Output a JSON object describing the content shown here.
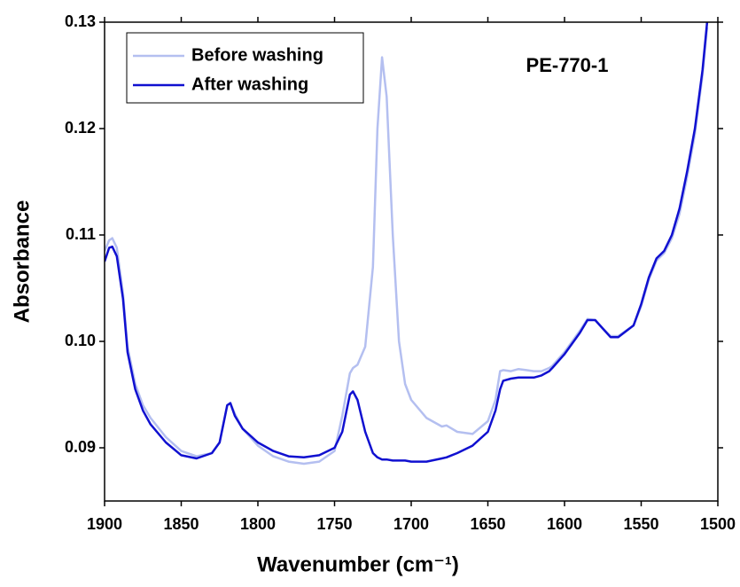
{
  "chart_data": {
    "type": "line",
    "x_label": "Wavenumber (cm⁻¹)",
    "y_label": "Absorbance",
    "annotation": "PE-770-1",
    "xlim": [
      1900,
      1500
    ],
    "ylim": [
      0.085,
      0.13
    ],
    "xticks": [
      1900,
      1850,
      1800,
      1750,
      1700,
      1650,
      1600,
      1550,
      1500
    ],
    "yticks": [
      0.09,
      {
        "value": 0.1,
        "label": "0.10"
      },
      0.11,
      0.12,
      0.13
    ],
    "legend": "upper left",
    "x": [
      1900,
      1897,
      1895,
      1892,
      1888,
      1885,
      1880,
      1875,
      1870,
      1860,
      1850,
      1840,
      1830,
      1825,
      1820,
      1818,
      1815,
      1810,
      1800,
      1790,
      1780,
      1770,
      1760,
      1750,
      1745,
      1740,
      1738,
      1735,
      1730,
      1725,
      1722,
      1719,
      1716,
      1712,
      1708,
      1704,
      1700,
      1690,
      1680,
      1677,
      1670,
      1660,
      1650,
      1645,
      1642,
      1640,
      1635,
      1630,
      1625,
      1620,
      1615,
      1610,
      1608,
      1600,
      1590,
      1585,
      1580,
      1575,
      1570,
      1565,
      1555,
      1550,
      1545,
      1540,
      1535,
      1530,
      1525,
      1520,
      1515,
      1510,
      1507
    ],
    "series": [
      {
        "name": "Before washing",
        "color": "#b4bff0",
        "values": [
          0.1085,
          0.1095,
          0.1097,
          0.1088,
          0.1045,
          0.0995,
          0.096,
          0.094,
          0.0928,
          0.091,
          0.0897,
          0.0892,
          0.0895,
          0.0905,
          0.094,
          0.0942,
          0.0932,
          0.0918,
          0.0902,
          0.0892,
          0.0887,
          0.0885,
          0.0887,
          0.0897,
          0.093,
          0.097,
          0.0975,
          0.0978,
          0.0995,
          0.107,
          0.12,
          0.1267,
          0.123,
          0.11,
          0.1,
          0.096,
          0.0945,
          0.0928,
          0.092,
          0.0921,
          0.0915,
          0.0913,
          0.0925,
          0.0945,
          0.0972,
          0.0973,
          0.0972,
          0.0974,
          0.0973,
          0.0972,
          0.0972,
          0.0975,
          0.0977,
          0.099,
          0.101,
          0.1021,
          0.102,
          0.1012,
          0.1005,
          0.1005,
          0.1015,
          0.1033,
          0.1058,
          0.1076,
          0.1083,
          0.1097,
          0.112,
          0.1155,
          0.1195,
          0.125,
          0.1295
        ]
      },
      {
        "name": "After washing",
        "color": "#1010d0",
        "values": [
          0.1075,
          0.1088,
          0.1089,
          0.108,
          0.104,
          0.099,
          0.0955,
          0.0935,
          0.0922,
          0.0905,
          0.0893,
          0.089,
          0.0895,
          0.0905,
          0.094,
          0.0942,
          0.093,
          0.0918,
          0.0905,
          0.0897,
          0.0892,
          0.0891,
          0.0893,
          0.09,
          0.0915,
          0.095,
          0.0953,
          0.0945,
          0.0915,
          0.0895,
          0.0891,
          0.0889,
          0.0889,
          0.0888,
          0.0888,
          0.0888,
          0.0887,
          0.0887,
          0.089,
          0.0891,
          0.0895,
          0.0902,
          0.0915,
          0.0935,
          0.0955,
          0.0963,
          0.0965,
          0.0966,
          0.0966,
          0.0966,
          0.0968,
          0.0972,
          0.0975,
          0.0988,
          0.1008,
          0.102,
          0.102,
          0.1012,
          0.1004,
          0.1004,
          0.1015,
          0.1035,
          0.106,
          0.1078,
          0.1085,
          0.11,
          0.1125,
          0.116,
          0.12,
          0.1255,
          0.13
        ]
      }
    ]
  }
}
